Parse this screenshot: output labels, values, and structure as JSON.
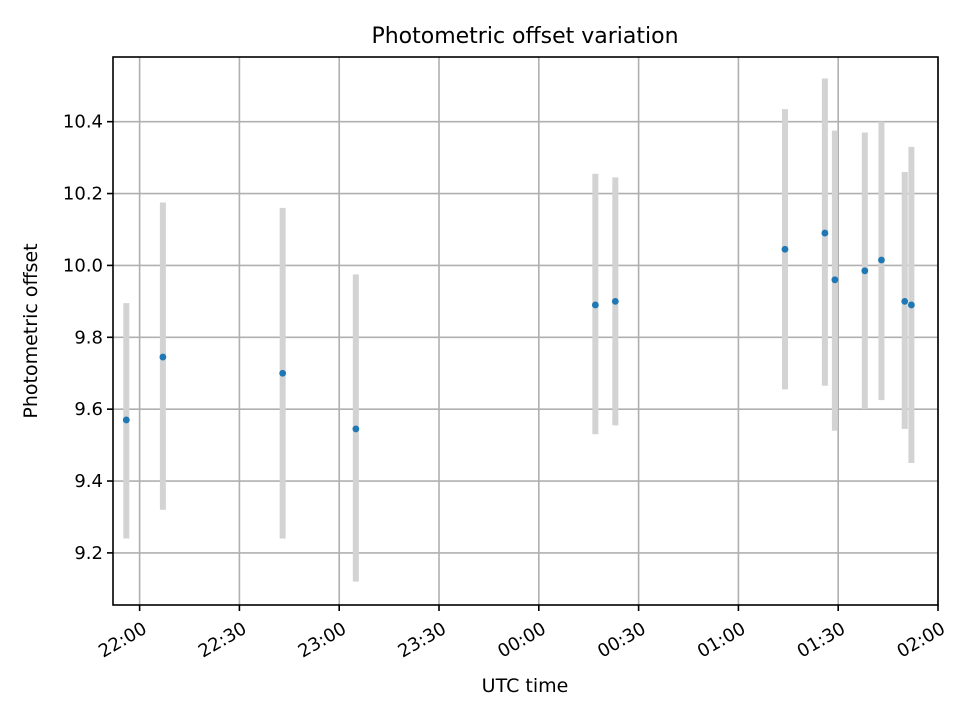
{
  "chart_data": {
    "type": "scatter",
    "title": "Photometric offset variation",
    "xlabel": "UTC time",
    "ylabel": "Photometric offset",
    "x_ticks": [
      "22:00",
      "22:30",
      "23:00",
      "23:30",
      "00:00",
      "00:30",
      "01:00",
      "01:30",
      "02:00"
    ],
    "y_ticks": [
      "9.2",
      "9.4",
      "9.6",
      "9.8",
      "10.0",
      "10.2",
      "10.4"
    ],
    "xlim": [
      "21:52",
      "02:00"
    ],
    "ylim": [
      9.055,
      10.58
    ],
    "grid": true,
    "legend": "none",
    "colors": {
      "points": "#1f77b4",
      "error_bars": "#d3d3d3"
    },
    "points": [
      {
        "x": "21:56",
        "y": 9.57,
        "yerr_low": 9.24,
        "yerr_high": 9.895
      },
      {
        "x": "22:07",
        "y": 9.745,
        "yerr_low": 9.32,
        "yerr_high": 10.175
      },
      {
        "x": "22:43",
        "y": 9.7,
        "yerr_low": 9.24,
        "yerr_high": 10.16
      },
      {
        "x": "23:05",
        "y": 9.545,
        "yerr_low": 9.12,
        "yerr_high": 9.975
      },
      {
        "x": "00:17",
        "y": 9.89,
        "yerr_low": 9.53,
        "yerr_high": 10.255
      },
      {
        "x": "00:23",
        "y": 9.9,
        "yerr_low": 9.555,
        "yerr_high": 10.245
      },
      {
        "x": "01:14",
        "y": 10.045,
        "yerr_low": 9.655,
        "yerr_high": 10.435
      },
      {
        "x": "01:26",
        "y": 10.09,
        "yerr_low": 9.665,
        "yerr_high": 10.52
      },
      {
        "x": "01:29",
        "y": 9.96,
        "yerr_low": 9.54,
        "yerr_high": 10.375
      },
      {
        "x": "01:38",
        "y": 9.985,
        "yerr_low": 9.6,
        "yerr_high": 10.37
      },
      {
        "x": "01:43",
        "y": 10.015,
        "yerr_low": 9.625,
        "yerr_high": 10.4
      },
      {
        "x": "01:50",
        "y": 9.9,
        "yerr_low": 9.545,
        "yerr_high": 10.26
      },
      {
        "x": "01:52",
        "y": 9.89,
        "yerr_low": 9.45,
        "yerr_high": 10.33
      }
    ]
  }
}
